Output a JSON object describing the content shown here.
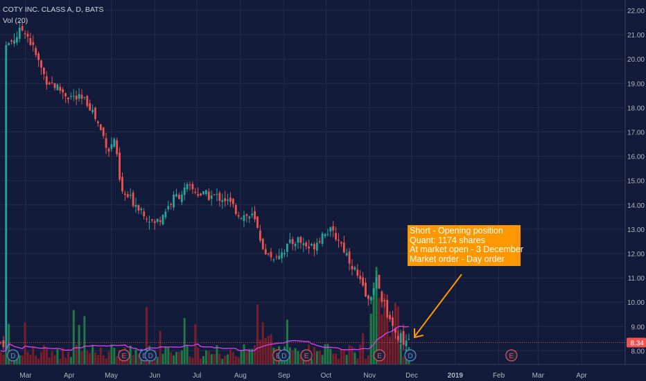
{
  "legend": {
    "title": "COTY INC. CLASS A, D, BATS",
    "volume": "Vol (20)"
  },
  "annotation": {
    "lines": [
      "Short - Opening position",
      "Quant: 1174 shares",
      "At market open - 3 December",
      "Market order - Day order"
    ]
  },
  "colors": {
    "background": "#131b3a",
    "grid": "#242c4a",
    "up": "#26a69a",
    "down": "#ef5350",
    "up_volume": "#1f7a45",
    "down_volume": "#7a1f2a",
    "volume_ma": "#e040fb",
    "annotation": "#ff9800",
    "price_label": "#ef5350"
  },
  "chart_data": {
    "type": "candlestick",
    "symbol": "COTY INC. CLASS A, D, BATS",
    "indicator": "Vol (20)",
    "x_ticks": [
      "Mar",
      "Apr",
      "May",
      "Jun",
      "Jul",
      "Aug",
      "Sep",
      "Oct",
      "Nov",
      "Dec",
      "2019",
      "Feb",
      "Mar",
      "Apr"
    ],
    "y_ticks": [
      "22.00",
      "21.00",
      "20.00",
      "19.00",
      "18.00",
      "17.00",
      "16.00",
      "15.00",
      "14.00",
      "13.00",
      "12.00",
      "11.00",
      "10.00",
      "9.00",
      "8.00"
    ],
    "ylim": [
      7.8,
      22.2
    ],
    "last_price": "8.34",
    "last_price_value": 8.34,
    "series": [
      {
        "name": "close",
        "x": [
          "2018-02-15",
          "2018-02-28",
          "2018-03-15",
          "2018-03-31",
          "2018-04-15",
          "2018-04-30",
          "2018-05-03",
          "2018-05-08",
          "2018-05-20",
          "2018-06-01",
          "2018-06-15",
          "2018-06-25",
          "2018-07-05",
          "2018-07-20",
          "2018-08-01",
          "2018-08-10",
          "2018-08-20",
          "2018-08-31",
          "2018-09-10",
          "2018-09-20",
          "2018-10-01",
          "2018-10-10",
          "2018-10-20",
          "2018-10-31",
          "2018-11-05",
          "2018-11-12",
          "2018-11-20",
          "2018-11-30"
        ],
        "y": [
          20.5,
          21.3,
          19.2,
          18.5,
          18.2,
          16.2,
          16.8,
          14.5,
          14.0,
          13.2,
          14.3,
          14.7,
          14.4,
          14.3,
          13.6,
          13.5,
          11.8,
          12.1,
          12.6,
          12.2,
          13.0,
          12.6,
          11.5,
          10.0,
          11.0,
          9.8,
          8.6,
          8.34
        ]
      }
    ],
    "event_markers": [
      {
        "label": "D",
        "date": "2018-02-20"
      },
      {
        "label": "D",
        "date": "2018-05-25"
      },
      {
        "label": "E",
        "date": "2018-05-10"
      },
      {
        "label": "D",
        "date": "2018-05-29"
      },
      {
        "label": "E",
        "date": "2018-08-28"
      },
      {
        "label": "D",
        "date": "2018-09-01"
      },
      {
        "label": "E",
        "date": "2018-09-17"
      },
      {
        "label": "E",
        "date": "2018-11-08"
      },
      {
        "label": "D",
        "date": "2018-11-30"
      },
      {
        "label": "E",
        "date": "2019-02-10"
      }
    ]
  }
}
